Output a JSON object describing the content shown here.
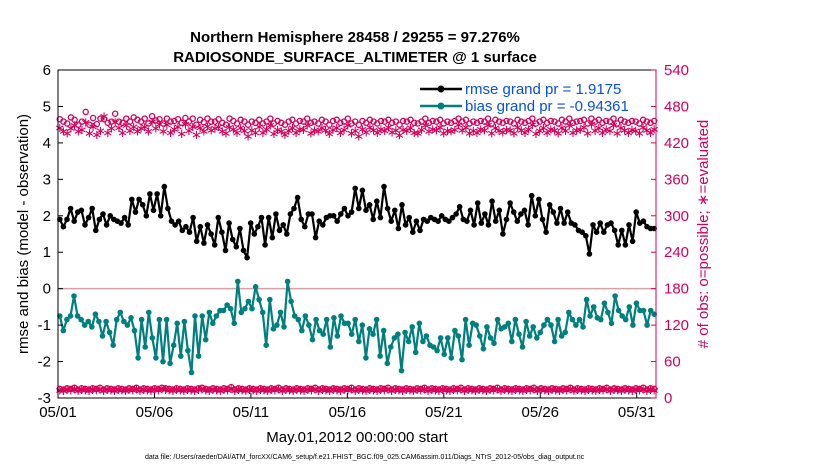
{
  "chart_data": {
    "type": "line",
    "title": "Northern Hemisphere 28458 / 29255 = 97.276%",
    "subtitle": "RADIOSONDE_SURFACE_ALTIMETER @ 1 surface",
    "xlabel": "May.01,2012 00:00:00 start",
    "ylabel_left": "rmse and bias (model - observation)",
    "ylabel_right": "# of obs: o=possible; ∗=evaluated",
    "footnote": "data file: /Users/raeder/DAI/ATM_forcXX/CAM6_setup/f.e21.FHIST_BGC.f09_025.CAM6assim.011/Diags_NTrS_2012-05/obs_diag_output.nc",
    "xlim": [
      1,
      32
    ],
    "ylim_left": [
      -3,
      6
    ],
    "ylim_right": [
      0,
      540
    ],
    "x_tick_labels": [
      "05/01",
      "05/06",
      "05/11",
      "05/16",
      "05/21",
      "05/26",
      "05/31"
    ],
    "y_left_ticks": [
      "-3",
      "-2",
      "-1",
      "0",
      "1",
      "2",
      "3",
      "4",
      "5",
      "6"
    ],
    "y_right_ticks": [
      "0",
      "60",
      "120",
      "180",
      "240",
      "300",
      "360",
      "420",
      "480",
      "540"
    ],
    "colors": {
      "rmse": "#000000",
      "bias": "#007f7f",
      "obs": "#d6005a",
      "zero_line": "#d9a0a8",
      "legend_text": "#0a4fe0"
    },
    "legend_placement": "top-right",
    "series": [
      {
        "name": "rmse grand pr = 1.9175",
        "axis": "left",
        "values": [
          1.9,
          1.7,
          1.9,
          2.2,
          1.85,
          2.1,
          2.15,
          1.75,
          1.95,
          2.2,
          1.6,
          1.9,
          2.05,
          1.75,
          2.0,
          1.9,
          1.85,
          1.8,
          1.95,
          1.75,
          2.45,
          2.1,
          2.45,
          2.3,
          2.0,
          2.6,
          2.15,
          2.6,
          2.0,
          2.8,
          2.2,
          1.85,
          1.75,
          1.85,
          1.6,
          1.7,
          1.55,
          1.95,
          1.3,
          1.7,
          1.25,
          1.75,
          1.5,
          1.2,
          1.95,
          1.55,
          1.05,
          1.8,
          1.35,
          1.15,
          1.65,
          1.05,
          0.85,
          1.8,
          1.5,
          1.7,
          1.95,
          1.2,
          1.95,
          1.4,
          2.05,
          1.6,
          1.75,
          1.5,
          2.05,
          2.2,
          2.5,
          1.9,
          1.7,
          2.05,
          2.05,
          1.4,
          1.85,
          1.75,
          1.95,
          2.0,
          2.0,
          1.85,
          2.05,
          2.2,
          2.0,
          2.1,
          2.75,
          2.2,
          2.7,
          2.15,
          2.3,
          1.9,
          2.4,
          1.95,
          2.8,
          2.2,
          1.85,
          2.15,
          1.65,
          2.3,
          1.75,
          1.95,
          1.55,
          1.85,
          1.6,
          1.9,
          1.85,
          1.95,
          1.9,
          1.85,
          2.0,
          1.9,
          1.85,
          1.95,
          2.05,
          2.25,
          1.9,
          1.85,
          2.15,
          1.75,
          2.35,
          1.8,
          2.05,
          1.75,
          2.4,
          1.85,
          2.15,
          1.5,
          1.9,
          2.35,
          2.1,
          1.85,
          2.05,
          2.15,
          1.75,
          2.55,
          2.0,
          2.45,
          1.9,
          1.55,
          2.3,
          2.1,
          1.8,
          2.2,
          1.8,
          2.1,
          1.8,
          1.75,
          1.6,
          1.55,
          1.45,
          0.95,
          1.75,
          1.55,
          1.8,
          1.55,
          1.75,
          1.8,
          1.6,
          1.2,
          1.6,
          1.2,
          1.75,
          1.3,
          2.1,
          1.8,
          1.85,
          1.7,
          1.65,
          1.65
        ]
      },
      {
        "name": "bias grand pr = -0.94361",
        "axis": "left",
        "values": [
          -0.75,
          -1.15,
          -0.85,
          -0.75,
          -0.2,
          -0.75,
          -0.85,
          -1.0,
          -0.9,
          -1.05,
          -0.7,
          -0.9,
          -1.3,
          -0.9,
          -1.2,
          -1.55,
          -0.85,
          -0.65,
          -0.9,
          -1.0,
          -0.8,
          -1.15,
          -1.9,
          -0.85,
          -1.6,
          -0.65,
          -1.35,
          -1.9,
          -0.85,
          -2.0,
          -0.85,
          -2.05,
          -1.55,
          -0.95,
          -1.85,
          -0.9,
          -1.7,
          -2.3,
          -0.75,
          -1.85,
          -0.75,
          -1.4,
          -0.65,
          -0.95,
          -0.75,
          -0.6,
          -0.6,
          -0.45,
          -0.55,
          -0.95,
          0.2,
          -0.65,
          -0.55,
          -0.35,
          -0.55,
          0.05,
          -0.3,
          -0.65,
          -1.55,
          -0.3,
          -1.1,
          -1.0,
          -0.65,
          -1.05,
          0.2,
          -0.35,
          -0.75,
          -0.85,
          -1.15,
          -0.75,
          -1.0,
          -1.4,
          -0.85,
          -1.15,
          -1.25,
          -0.85,
          -1.6,
          -0.8,
          -1.3,
          -0.75,
          -0.95,
          -0.95,
          -1.25,
          -0.85,
          -1.45,
          -1.0,
          -1.9,
          -1.1,
          -1.25,
          -0.85,
          -1.85,
          -1.15,
          -2.05,
          -1.6,
          -1.35,
          -1.25,
          -2.25,
          -1.2,
          -1.45,
          -1.05,
          -1.75,
          -0.95,
          -1.45,
          -1.3,
          -1.55,
          -1.6,
          -1.7,
          -1.35,
          -1.8,
          -1.35,
          -1.9,
          -1.15,
          -1.3,
          -1.95,
          -0.85,
          -1.55,
          -0.95,
          -1.0,
          -1.3,
          -1.65,
          -1.05,
          -1.35,
          -1.5,
          -0.85,
          -1.1,
          -1.05,
          -0.95,
          -1.45,
          -0.85,
          -1.25,
          -1.6,
          -0.9,
          -1.3,
          -1.05,
          -1.35,
          -1.2,
          -1.0,
          -0.85,
          -1.0,
          -1.45,
          -0.85,
          -1.3,
          -1.2,
          -0.65,
          -0.85,
          -1.0,
          -0.85,
          -1.05,
          -0.3,
          -0.75,
          -0.5,
          -0.8,
          -0.85,
          -0.4,
          -0.65,
          -0.95,
          -0.2,
          -0.6,
          -0.75,
          -0.85,
          -0.5,
          -1.0,
          -0.4,
          -0.6,
          -0.6,
          -1.0,
          -0.6,
          -0.7
        ]
      },
      {
        "name": "possible",
        "axis": "right",
        "values": [
          459,
          455,
          452,
          462,
          458,
          450,
          455,
          471,
          450,
          461,
          451,
          460,
          459,
          453,
          455,
          468,
          455,
          453,
          460,
          455,
          462,
          458,
          455,
          460,
          452,
          464,
          457,
          459,
          452,
          460,
          455,
          456,
          459,
          453,
          461,
          455,
          460,
          450,
          458,
          454,
          460,
          455,
          455,
          459,
          453,
          450,
          460,
          456,
          452,
          458,
          455,
          450,
          455,
          453,
          458,
          452,
          455,
          460,
          452,
          456,
          453,
          450,
          455,
          458,
          452,
          456,
          455,
          460,
          453,
          455,
          452,
          458,
          455,
          450,
          456,
          458,
          453,
          455,
          460,
          452,
          455,
          450,
          456,
          453,
          458,
          455,
          452,
          456,
          455,
          458,
          453,
          455,
          450,
          456,
          455,
          458,
          453,
          452,
          455,
          460,
          453,
          456,
          455,
          458,
          452,
          455,
          453,
          456,
          460,
          455,
          458,
          452,
          455,
          453,
          456,
          455,
          460,
          452,
          458,
          455,
          453,
          456,
          455,
          452,
          458,
          455,
          453,
          456,
          460,
          452,
          455,
          458,
          453,
          456,
          455,
          452,
          458,
          455,
          460,
          453,
          455,
          456,
          458,
          452,
          460,
          455,
          458,
          453,
          456,
          455,
          460,
          452,
          458,
          455,
          453,
          456,
          455,
          452,
          458,
          455,
          453,
          456
        ]
      },
      {
        "name": "evaluated",
        "axis": "right",
        "values": [
          446,
          440,
          437,
          445,
          450,
          440,
          443,
          455,
          437,
          448,
          435,
          441,
          465,
          438,
          445,
          455,
          446,
          438,
          450,
          441,
          448,
          440,
          445,
          448,
          440,
          456,
          445,
          452,
          440,
          451,
          438,
          444,
          448,
          436,
          452,
          441,
          448,
          435,
          446,
          440,
          449,
          442,
          445,
          448,
          440,
          437,
          447,
          444,
          438,
          446,
          441,
          432,
          442,
          438,
          448,
          438,
          444,
          450,
          436,
          443,
          440,
          435,
          441,
          446,
          438,
          444,
          443,
          450,
          437,
          442,
          440,
          446,
          442,
          436,
          443,
          446,
          438,
          443,
          450,
          437,
          441,
          432,
          444,
          439,
          447,
          442,
          438,
          444,
          441,
          447,
          439,
          442,
          434,
          443,
          441,
          446,
          438,
          437,
          443,
          450,
          440,
          444,
          442,
          447,
          437,
          441,
          440,
          443,
          451,
          442,
          447,
          437,
          441,
          438,
          444,
          442,
          450,
          437,
          446,
          441,
          439,
          443,
          442,
          437,
          447,
          442,
          438,
          444,
          451,
          436,
          441,
          446,
          438,
          444,
          442,
          437,
          446,
          441,
          450,
          438,
          442,
          443,
          447,
          437,
          452,
          441,
          446,
          438,
          444,
          441,
          450,
          437,
          446,
          442,
          438,
          443,
          441,
          437,
          447,
          442,
          438,
          444
        ]
      }
    ],
    "obs_bottom": {
      "possible": [
        15,
        14,
        16,
        15,
        17,
        14,
        16,
        15,
        14,
        16,
        15,
        17,
        14,
        16,
        15,
        14,
        16,
        15,
        14,
        16,
        15,
        17,
        14,
        16,
        15,
        14,
        16,
        15,
        17,
        16,
        15,
        14,
        16,
        15,
        14,
        16,
        15,
        14,
        16,
        17,
        15,
        14,
        16,
        15,
        14,
        16,
        15,
        18,
        14,
        16,
        15,
        14,
        16,
        15,
        14,
        16,
        15,
        14,
        16,
        15,
        17,
        14,
        16,
        15,
        14,
        16,
        15,
        14,
        16,
        15,
        17,
        14,
        16,
        15,
        14,
        16,
        15,
        14,
        16,
        15,
        17,
        14,
        16,
        15,
        14,
        16,
        15,
        14,
        16,
        15,
        17,
        14,
        16,
        15,
        14,
        16,
        15,
        14,
        16,
        15,
        17,
        14,
        16,
        15,
        14,
        16,
        15,
        14,
        16,
        15,
        17,
        14,
        16,
        15,
        14,
        16,
        15,
        14,
        16,
        15,
        17,
        14,
        16,
        15,
        14,
        16,
        15,
        14,
        16,
        15,
        17,
        14,
        16,
        15,
        14,
        16,
        15,
        14,
        16,
        15,
        17,
        14,
        16,
        15,
        14,
        16,
        15,
        14,
        16,
        15,
        17,
        14,
        16,
        15,
        14,
        16,
        15,
        14,
        16,
        15,
        17,
        14,
        16,
        15
      ],
      "evaluated": [
        14,
        13,
        15,
        14,
        16,
        13,
        15,
        14,
        13,
        15,
        14,
        16,
        13,
        15,
        14,
        13,
        15,
        14,
        13,
        15,
        14,
        16,
        13,
        15,
        14,
        13,
        15,
        14,
        16,
        15,
        14,
        13,
        15,
        14,
        13,
        15,
        14,
        13,
        15,
        16,
        14,
        13,
        15,
        14,
        13,
        15,
        14,
        17,
        13,
        15,
        14,
        13,
        15,
        14,
        13,
        15,
        14,
        13,
        15,
        14,
        16,
        13,
        15,
        14,
        13,
        15,
        14,
        13,
        15,
        14,
        16,
        13,
        15,
        14,
        13,
        15,
        14,
        13,
        15,
        14,
        16,
        13,
        15,
        14,
        13,
        15,
        14,
        13,
        15,
        14,
        16,
        13,
        15,
        14,
        13,
        15,
        14,
        13,
        15,
        14,
        16,
        13,
        15,
        14,
        13,
        15,
        14,
        13,
        15,
        14,
        16,
        13,
        15,
        14,
        13,
        15,
        14,
        13,
        15,
        14,
        16,
        13,
        15,
        14,
        13,
        15,
        14,
        13,
        15,
        14,
        16,
        13,
        15,
        14,
        13,
        15,
        14,
        13,
        15,
        14,
        16,
        13,
        15,
        14,
        13,
        15,
        14,
        13,
        15,
        14,
        16,
        13,
        15,
        14,
        13,
        15,
        14,
        13,
        15,
        14,
        16,
        13,
        15,
        14
      ]
    }
  }
}
